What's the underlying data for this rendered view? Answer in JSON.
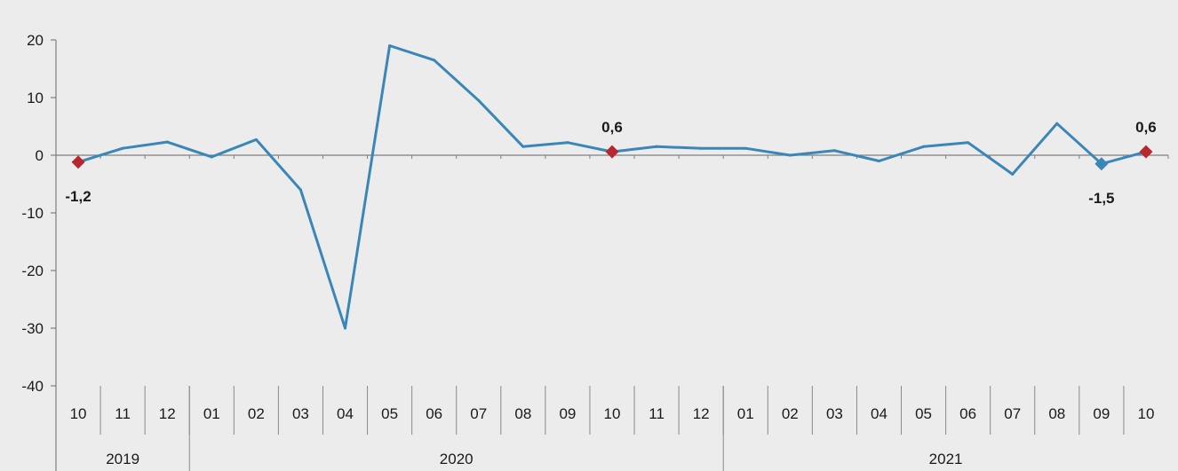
{
  "chart_data": {
    "type": "line",
    "title": "",
    "xlabel": "",
    "ylabel": "",
    "ylim": [
      -40,
      20
    ],
    "yticks": [
      20,
      10,
      0,
      -10,
      -20,
      -30,
      -40
    ],
    "grid": false,
    "legend": "none",
    "line_color": "#3a87b7",
    "marker_color": "#b8262e",
    "categories": [
      "10",
      "11",
      "12",
      "01",
      "02",
      "03",
      "04",
      "05",
      "06",
      "07",
      "08",
      "09",
      "10",
      "11",
      "12",
      "01",
      "02",
      "03",
      "04",
      "05",
      "06",
      "07",
      "08",
      "09",
      "10"
    ],
    "years": [
      {
        "label": "2019",
        "start": 0,
        "end": 2
      },
      {
        "label": "2020",
        "start": 3,
        "end": 14
      },
      {
        "label": "2021",
        "start": 15,
        "end": 24
      }
    ],
    "values": [
      -1.2,
      1.2,
      2.3,
      -0.3,
      2.7,
      -6.0,
      -30.0,
      19.0,
      16.5,
      9.5,
      1.5,
      2.2,
      0.6,
      1.5,
      1.2,
      1.2,
      0.0,
      0.8,
      -1.0,
      1.5,
      2.2,
      -3.3,
      5.5,
      -1.5,
      0.6
    ],
    "annotations": [
      {
        "index": 0,
        "text": "-1,2",
        "position": "below",
        "marker": "diamond-red"
      },
      {
        "index": 12,
        "text": "0,6",
        "position": "above",
        "marker": "diamond-red"
      },
      {
        "index": 23,
        "text": "-1,5",
        "position": "below",
        "marker": "diamond-blue"
      },
      {
        "index": 24,
        "text": "0,6",
        "position": "above",
        "marker": "diamond-red"
      }
    ]
  }
}
